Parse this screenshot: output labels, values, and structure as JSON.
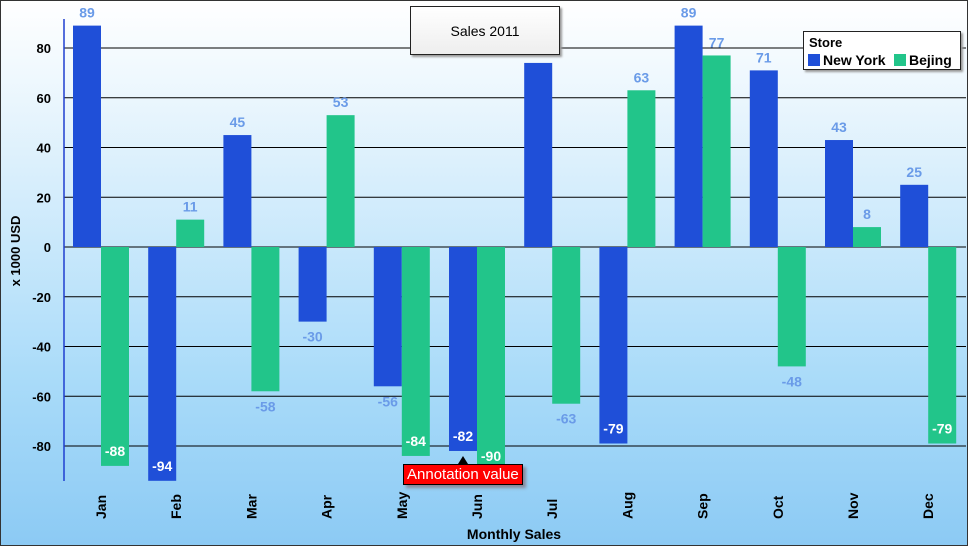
{
  "chart_data": {
    "type": "bar",
    "title": "Sales 2011",
    "xlabel": "Monthly Sales",
    "ylabel": "x 1000 USD",
    "categories": [
      "Jan",
      "Feb",
      "Mar",
      "Apr",
      "May",
      "Jun",
      "Jul",
      "Aug",
      "Sep",
      "Oct",
      "Nov",
      "Dec"
    ],
    "series": [
      {
        "name": "New York",
        "color": "#1f4fd8",
        "values": [
          89,
          -94,
          45,
          -30,
          -56,
          -82,
          74,
          -79,
          89,
          71,
          43,
          25
        ]
      },
      {
        "name": "Bejing",
        "color": "#22c58a",
        "values": [
          -88,
          11,
          -58,
          53,
          -84,
          -90,
          -63,
          63,
          77,
          -48,
          8,
          -79
        ]
      }
    ],
    "ylim": [
      -94,
      89
    ],
    "yticks": [
      -80,
      -60,
      -40,
      -20,
      0,
      20,
      40,
      60,
      80
    ],
    "legend_title": "Store",
    "legend_position": "top-right",
    "annotation": {
      "text": "Annotation value",
      "category": "Jun",
      "series": "New York"
    },
    "label_color": "#6a9be8",
    "grid": true
  }
}
